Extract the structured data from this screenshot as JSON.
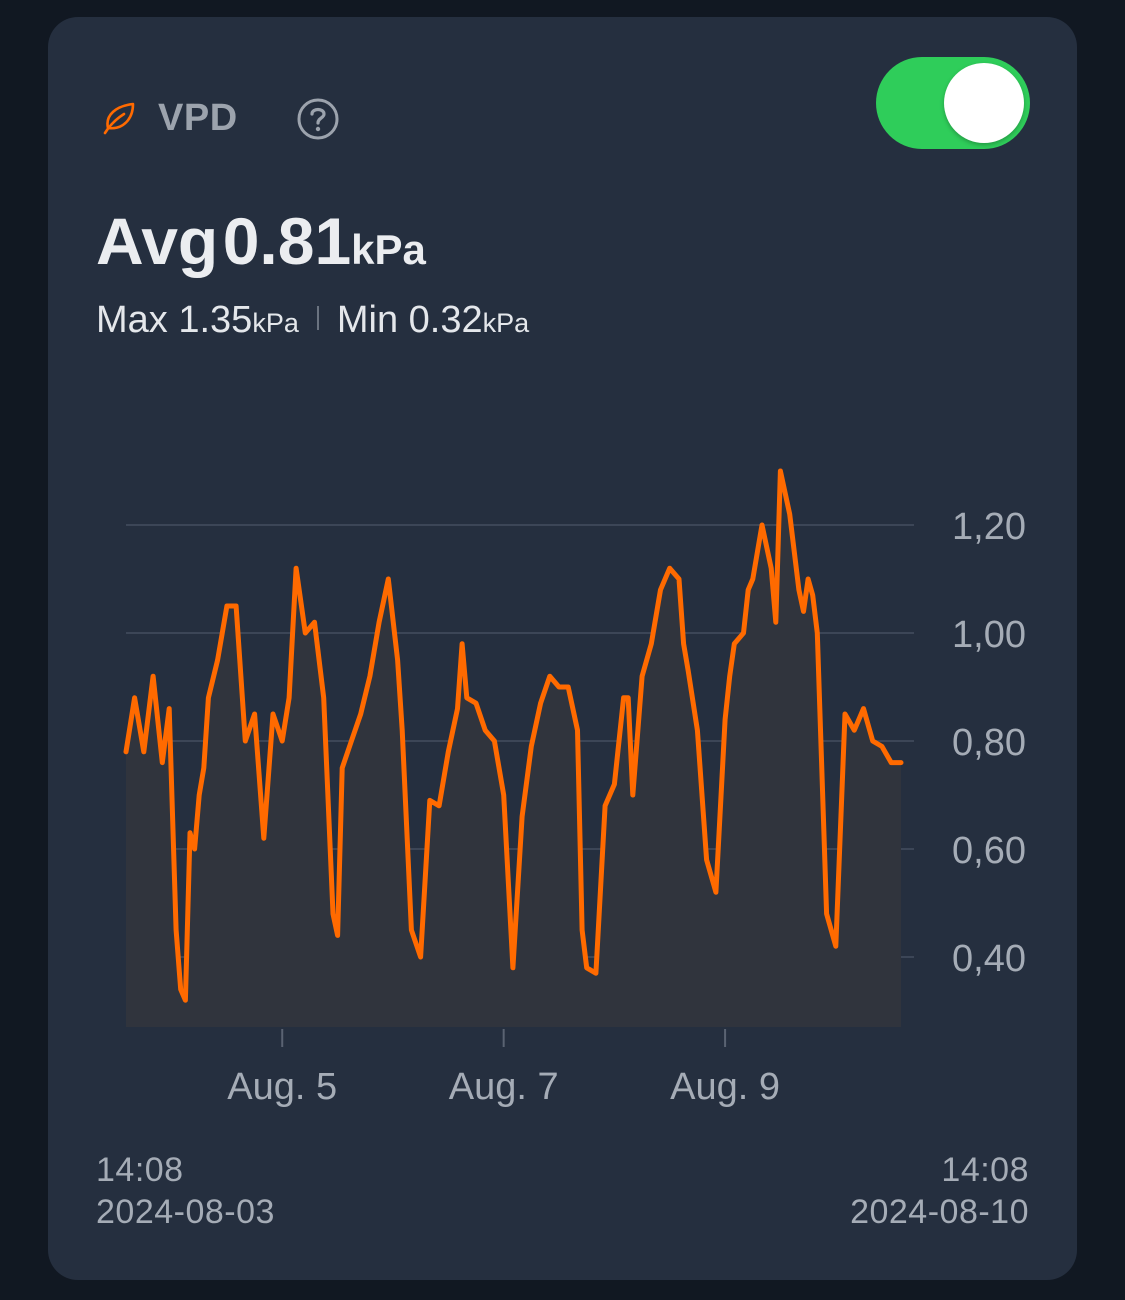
{
  "metric": {
    "name": "VPD",
    "icon": "leaf-icon",
    "help_icon": "question-circle-icon",
    "toggle_on": true,
    "accent_color": "#ff6a00",
    "toggle_color": "#2fcd5a"
  },
  "summary": {
    "avg_label": "Avg",
    "avg_value": "0.81",
    "unit": "kPa",
    "max_label": "Max",
    "max_value": "1.35",
    "min_label": "Min",
    "min_value": "0.32"
  },
  "range": {
    "start_time": "14:08",
    "start_date": "2024-08-03",
    "end_time": "14:08",
    "end_date": "2024-08-10"
  },
  "chart_data": {
    "type": "area",
    "ylim": [
      0.3,
      1.4
    ],
    "y_ticks": [
      0.4,
      0.6,
      0.8,
      1.0,
      1.2
    ],
    "y_tick_labels": [
      "0,40",
      "0,60",
      "0,80",
      "1,00",
      "1,20"
    ],
    "x_range": [
      "2024-08-03T14:08",
      "2024-08-10T14:08"
    ],
    "x_ticks": [
      "2024-08-05",
      "2024-08-07",
      "2024-08-09"
    ],
    "x_tick_labels": [
      "Aug. 5",
      "Aug. 7",
      "Aug. 9"
    ],
    "grid": true,
    "line_color": "#ff6a00",
    "series": [
      {
        "x": [
          "2024-08-03T14:08",
          "2024-08-03T16:00",
          "2024-08-03T18:00",
          "2024-08-03T20:00",
          "2024-08-03T22:00",
          "2024-08-03T23:30",
          "2024-08-04T01:00",
          "2024-08-04T02:00",
          "2024-08-04T03:00",
          "2024-08-04T04:00",
          "2024-08-04T05:00",
          "2024-08-04T06:00",
          "2024-08-04T07:00",
          "2024-08-04T08:00",
          "2024-08-04T10:00",
          "2024-08-04T12:00",
          "2024-08-04T14:00",
          "2024-08-04T16:00",
          "2024-08-04T18:00",
          "2024-08-04T20:00",
          "2024-08-04T22:00",
          "2024-08-05T00:00",
          "2024-08-05T01:30",
          "2024-08-05T03:00",
          "2024-08-05T05:00",
          "2024-08-05T07:00",
          "2024-08-05T09:00",
          "2024-08-05T11:00",
          "2024-08-05T12:00",
          "2024-08-05T13:00",
          "2024-08-05T15:00",
          "2024-08-05T17:00",
          "2024-08-05T19:00",
          "2024-08-05T21:00",
          "2024-08-05T23:00",
          "2024-08-06T01:00",
          "2024-08-06T02:00",
          "2024-08-06T04:00",
          "2024-08-06T06:00",
          "2024-08-06T08:00",
          "2024-08-06T10:00",
          "2024-08-06T12:00",
          "2024-08-06T14:00",
          "2024-08-06T15:00",
          "2024-08-06T16:00",
          "2024-08-06T18:00",
          "2024-08-06T20:00",
          "2024-08-06T22:00",
          "2024-08-07T00:00",
          "2024-08-07T02:00",
          "2024-08-07T04:00",
          "2024-08-07T06:00",
          "2024-08-07T08:00",
          "2024-08-07T10:00",
          "2024-08-07T12:00",
          "2024-08-07T14:00",
          "2024-08-07T16:00",
          "2024-08-07T17:00",
          "2024-08-07T18:00",
          "2024-08-07T20:00",
          "2024-08-07T22:00",
          "2024-08-08T00:00",
          "2024-08-08T02:00",
          "2024-08-08T03:00",
          "2024-08-08T04:00",
          "2024-08-08T06:00",
          "2024-08-08T08:00",
          "2024-08-08T10:00",
          "2024-08-08T12:00",
          "2024-08-08T14:00",
          "2024-08-08T15:00",
          "2024-08-08T16:00",
          "2024-08-08T18:00",
          "2024-08-08T20:00",
          "2024-08-08T22:00",
          "2024-08-09T00:00",
          "2024-08-09T01:00",
          "2024-08-09T02:00",
          "2024-08-09T04:00",
          "2024-08-09T05:00",
          "2024-08-09T06:00",
          "2024-08-09T08:00",
          "2024-08-09T10:00",
          "2024-08-09T11:00",
          "2024-08-09T12:00",
          "2024-08-09T14:00",
          "2024-08-09T16:00",
          "2024-08-09T17:00",
          "2024-08-09T18:00",
          "2024-08-09T19:00",
          "2024-08-09T20:00",
          "2024-08-09T22:00",
          "2024-08-10T00:00",
          "2024-08-10T02:00",
          "2024-08-10T04:00",
          "2024-08-10T06:00",
          "2024-08-10T08:00",
          "2024-08-10T10:00",
          "2024-08-10T12:00",
          "2024-08-10T14:08"
        ],
        "values": [
          0.78,
          0.88,
          0.78,
          0.92,
          0.76,
          0.86,
          0.45,
          0.34,
          0.32,
          0.63,
          0.6,
          0.7,
          0.75,
          0.88,
          0.95,
          1.05,
          1.05,
          0.8,
          0.85,
          0.62,
          0.85,
          0.8,
          0.88,
          1.12,
          1.0,
          1.02,
          0.88,
          0.48,
          0.44,
          0.75,
          0.8,
          0.85,
          0.92,
          1.02,
          1.1,
          0.95,
          0.82,
          0.45,
          0.4,
          0.69,
          0.68,
          0.78,
          0.86,
          0.98,
          0.88,
          0.87,
          0.82,
          0.8,
          0.7,
          0.38,
          0.66,
          0.79,
          0.87,
          0.92,
          0.9,
          0.9,
          0.82,
          0.45,
          0.38,
          0.37,
          0.68,
          0.72,
          0.88,
          0.88,
          0.7,
          0.92,
          0.98,
          1.08,
          1.12,
          1.1,
          0.98,
          0.93,
          0.82,
          0.58,
          0.52,
          0.84,
          0.92,
          0.98,
          1.0,
          1.08,
          1.1,
          1.2,
          1.12,
          1.02,
          1.3,
          1.22,
          1.08,
          1.04,
          1.1,
          1.07,
          1.0,
          0.48,
          0.42,
          0.85,
          0.82,
          0.86,
          0.8,
          0.79,
          0.76,
          0.76
        ]
      }
    ]
  }
}
